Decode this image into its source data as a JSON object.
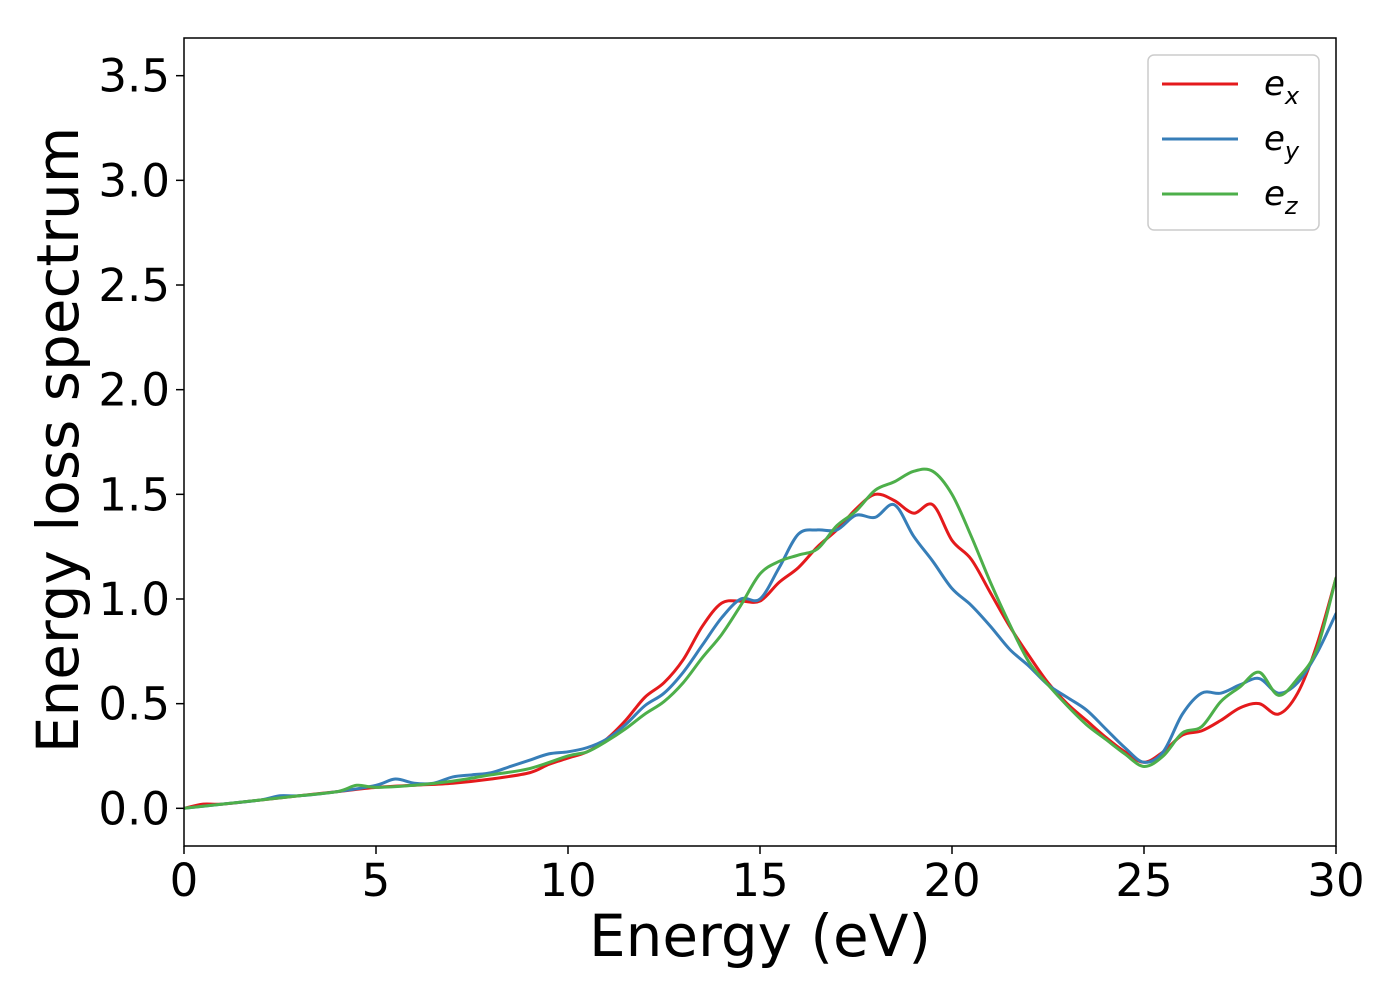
{
  "chart_data": {
    "type": "line",
    "title": "",
    "xlabel": "Energy (eV)",
    "ylabel": "Energy loss spectrum",
    "xlim": [
      0,
      30
    ],
    "ylim": [
      -0.18,
      3.68
    ],
    "xticks": [
      0,
      5,
      10,
      15,
      20,
      25,
      30
    ],
    "xtick_labels": [
      "0",
      "5",
      "10",
      "15",
      "20",
      "25",
      "30"
    ],
    "yticks": [
      0.0,
      0.5,
      1.0,
      1.5,
      2.0,
      2.5,
      3.0,
      3.5
    ],
    "ytick_labels": [
      "0.0",
      "0.5",
      "1.0",
      "1.5",
      "2.0",
      "2.5",
      "3.0",
      "3.5"
    ],
    "grid": false,
    "legend_position": "top-right",
    "series": [
      {
        "name": "e_x",
        "label_base": "e",
        "label_sub": "x",
        "color": "#e41a1c",
        "points": [
          [
            0,
            0.0
          ],
          [
            0.5,
            0.02
          ],
          [
            1,
            0.02
          ],
          [
            2,
            0.04
          ],
          [
            3,
            0.06
          ],
          [
            4,
            0.08
          ],
          [
            5,
            0.1
          ],
          [
            6,
            0.11
          ],
          [
            7,
            0.12
          ],
          [
            8,
            0.14
          ],
          [
            9,
            0.17
          ],
          [
            9.5,
            0.21
          ],
          [
            10,
            0.24
          ],
          [
            10.5,
            0.27
          ],
          [
            11,
            0.33
          ],
          [
            11.5,
            0.42
          ],
          [
            12,
            0.53
          ],
          [
            12.5,
            0.6
          ],
          [
            13,
            0.71
          ],
          [
            13.5,
            0.87
          ],
          [
            14,
            0.98
          ],
          [
            14.5,
            0.99
          ],
          [
            15,
            0.99
          ],
          [
            15.5,
            1.08
          ],
          [
            16,
            1.15
          ],
          [
            16.5,
            1.25
          ],
          [
            17,
            1.33
          ],
          [
            17.5,
            1.43
          ],
          [
            18,
            1.5
          ],
          [
            18.5,
            1.47
          ],
          [
            19,
            1.41
          ],
          [
            19.5,
            1.45
          ],
          [
            20,
            1.28
          ],
          [
            20.5,
            1.19
          ],
          [
            21,
            1.03
          ],
          [
            21.5,
            0.87
          ],
          [
            22,
            0.73
          ],
          [
            22.5,
            0.6
          ],
          [
            23,
            0.5
          ],
          [
            23.5,
            0.42
          ],
          [
            24,
            0.34
          ],
          [
            24.5,
            0.27
          ],
          [
            25,
            0.22
          ],
          [
            25.5,
            0.27
          ],
          [
            26,
            0.35
          ],
          [
            26.5,
            0.37
          ],
          [
            27,
            0.42
          ],
          [
            27.5,
            0.48
          ],
          [
            28,
            0.5
          ],
          [
            28.5,
            0.45
          ],
          [
            29,
            0.55
          ],
          [
            29.5,
            0.78
          ],
          [
            30,
            1.1
          ]
        ]
      },
      {
        "name": "e_y",
        "label_base": "e",
        "label_sub": "y",
        "color": "#377eb8",
        "points": [
          [
            0,
            0.0
          ],
          [
            0.5,
            0.01
          ],
          [
            1,
            0.02
          ],
          [
            2,
            0.04
          ],
          [
            2.5,
            0.06
          ],
          [
            3,
            0.06
          ],
          [
            4,
            0.08
          ],
          [
            5,
            0.11
          ],
          [
            5.5,
            0.14
          ],
          [
            6,
            0.12
          ],
          [
            6.5,
            0.12
          ],
          [
            7,
            0.15
          ],
          [
            7.5,
            0.16
          ],
          [
            8,
            0.17
          ],
          [
            8.5,
            0.2
          ],
          [
            9,
            0.23
          ],
          [
            9.5,
            0.26
          ],
          [
            10,
            0.27
          ],
          [
            10.5,
            0.29
          ],
          [
            11,
            0.33
          ],
          [
            11.5,
            0.4
          ],
          [
            12,
            0.49
          ],
          [
            12.5,
            0.55
          ],
          [
            13,
            0.65
          ],
          [
            13.5,
            0.78
          ],
          [
            14,
            0.91
          ],
          [
            14.5,
            1.0
          ],
          [
            15,
            1.0
          ],
          [
            15.5,
            1.15
          ],
          [
            16,
            1.31
          ],
          [
            16.5,
            1.33
          ],
          [
            17,
            1.33
          ],
          [
            17.5,
            1.4
          ],
          [
            18,
            1.39
          ],
          [
            18.5,
            1.45
          ],
          [
            19,
            1.3
          ],
          [
            19.5,
            1.18
          ],
          [
            20,
            1.05
          ],
          [
            20.5,
            0.97
          ],
          [
            21,
            0.87
          ],
          [
            21.5,
            0.76
          ],
          [
            22,
            0.68
          ],
          [
            22.5,
            0.59
          ],
          [
            23,
            0.53
          ],
          [
            23.5,
            0.47
          ],
          [
            24,
            0.38
          ],
          [
            24.5,
            0.29
          ],
          [
            25,
            0.22
          ],
          [
            25.5,
            0.27
          ],
          [
            26,
            0.45
          ],
          [
            26.5,
            0.55
          ],
          [
            27,
            0.55
          ],
          [
            27.5,
            0.59
          ],
          [
            28,
            0.62
          ],
          [
            28.5,
            0.55
          ],
          [
            29,
            0.6
          ],
          [
            29.5,
            0.74
          ],
          [
            30,
            0.93
          ]
        ]
      },
      {
        "name": "e_z",
        "label_base": "e",
        "label_sub": "z",
        "color": "#4daf4a",
        "points": [
          [
            0,
            0.0
          ],
          [
            1,
            0.02
          ],
          [
            2,
            0.04
          ],
          [
            3,
            0.06
          ],
          [
            4,
            0.08
          ],
          [
            4.5,
            0.11
          ],
          [
            5,
            0.1
          ],
          [
            6,
            0.11
          ],
          [
            7,
            0.13
          ],
          [
            8,
            0.16
          ],
          [
            9,
            0.19
          ],
          [
            10,
            0.25
          ],
          [
            10.5,
            0.27
          ],
          [
            11,
            0.32
          ],
          [
            11.5,
            0.38
          ],
          [
            12,
            0.45
          ],
          [
            12.5,
            0.51
          ],
          [
            13,
            0.6
          ],
          [
            13.5,
            0.72
          ],
          [
            14,
            0.83
          ],
          [
            14.5,
            0.97
          ],
          [
            15,
            1.12
          ],
          [
            15.5,
            1.18
          ],
          [
            16,
            1.21
          ],
          [
            16.5,
            1.24
          ],
          [
            17,
            1.35
          ],
          [
            17.5,
            1.42
          ],
          [
            18,
            1.52
          ],
          [
            18.5,
            1.56
          ],
          [
            19,
            1.61
          ],
          [
            19.5,
            1.61
          ],
          [
            20,
            1.5
          ],
          [
            20.5,
            1.3
          ],
          [
            21,
            1.08
          ],
          [
            21.5,
            0.88
          ],
          [
            22,
            0.7
          ],
          [
            22.5,
            0.59
          ],
          [
            23,
            0.49
          ],
          [
            23.5,
            0.4
          ],
          [
            24,
            0.33
          ],
          [
            24.5,
            0.26
          ],
          [
            25,
            0.2
          ],
          [
            25.5,
            0.25
          ],
          [
            26,
            0.36
          ],
          [
            26.5,
            0.39
          ],
          [
            27,
            0.51
          ],
          [
            27.5,
            0.58
          ],
          [
            28,
            0.65
          ],
          [
            28.5,
            0.54
          ],
          [
            29,
            0.62
          ],
          [
            29.5,
            0.76
          ],
          [
            30,
            1.1
          ]
        ]
      }
    ]
  }
}
